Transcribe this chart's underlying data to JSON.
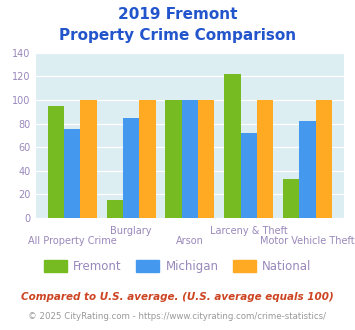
{
  "title_line1": "2019 Fremont",
  "title_line2": "Property Crime Comparison",
  "categories": [
    "All Property Crime",
    "Burglary",
    "Arson",
    "Larceny & Theft",
    "Motor Vehicle Theft"
  ],
  "cat_top": [
    "",
    "Burglary",
    "",
    "Larceny & Theft",
    ""
  ],
  "cat_bot": [
    "All Property Crime",
    "",
    "Arson",
    "",
    "Motor Vehicle Theft"
  ],
  "fremont": [
    95,
    15,
    100,
    122,
    33
  ],
  "michigan": [
    75,
    85,
    100,
    72,
    82
  ],
  "national": [
    100,
    100,
    100,
    100,
    100
  ],
  "fremont_color": "#77bb22",
  "michigan_color": "#4499ee",
  "national_color": "#ffaa22",
  "bg_color": "#ddeef2",
  "ylim": [
    0,
    140
  ],
  "yticks": [
    0,
    20,
    40,
    60,
    80,
    100,
    120,
    140
  ],
  "title_color": "#2255cc",
  "tick_label_color": "#9988bb",
  "legend_labels": [
    "Fremont",
    "Michigan",
    "National"
  ],
  "footnote1": "Compared to U.S. average. (U.S. average equals 100)",
  "footnote2": "© 2025 CityRating.com - https://www.cityrating.com/crime-statistics/",
  "footnote1_color": "#cc4422",
  "footnote2_color": "#999999",
  "footnote2_link_color": "#3366cc"
}
